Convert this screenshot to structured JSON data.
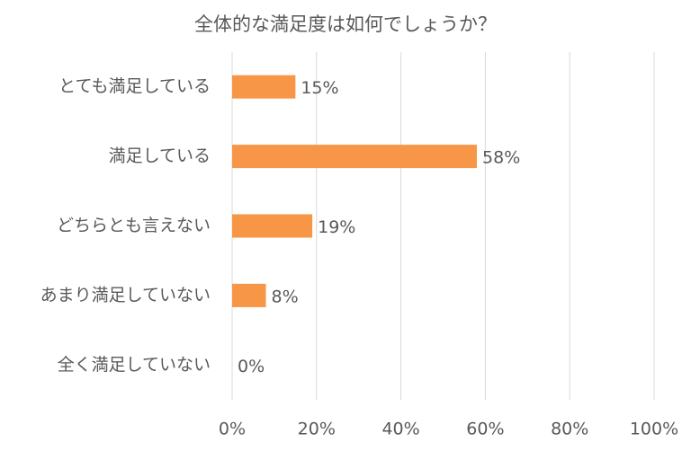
{
  "chart_data": {
    "type": "bar",
    "orientation": "horizontal",
    "title": "全体的な満足度は如何でしょうか？",
    "categories": [
      "とても満足している",
      "満足している",
      "どちらとも言えない",
      "あまり満足していない",
      "全く満足していない"
    ],
    "values": [
      15,
      58,
      19,
      8,
      0
    ],
    "value_labels": [
      "15%",
      "58%",
      "19%",
      "8%",
      "0%"
    ],
    "color": "#f79646",
    "xlim": [
      0,
      100
    ],
    "xticks": [
      {
        "value": 0,
        "label": "0%"
      },
      {
        "value": 20,
        "label": "20%"
      },
      {
        "value": 40,
        "label": "40%"
      },
      {
        "value": 60,
        "label": "60%"
      },
      {
        "value": 80,
        "label": "80%"
      },
      {
        "value": 100,
        "label": "100%"
      }
    ],
    "grid": true
  }
}
